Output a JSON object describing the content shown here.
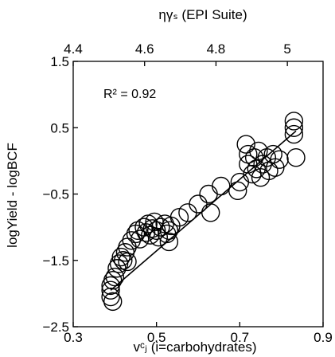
{
  "chart_data": {
    "type": "scatter",
    "title": "",
    "xlabel": "vᶜⱼ (i=carbohydrates)",
    "ylabel": "logYield - logBCF",
    "top_xlabel": "ηγₛ (EPI Suite)",
    "xlim": [
      0.3,
      0.9
    ],
    "ylim": [
      -2.5,
      1.5
    ],
    "top_xlim": [
      4.4,
      5.1
    ],
    "xticks": [
      "0.3",
      "0.5",
      "0.7",
      "0.9"
    ],
    "yticks": [
      "1.5",
      "0.5",
      "−0.5",
      "−1.5",
      "−2.5"
    ],
    "top_xticks": [
      "4.4",
      "4.6",
      "4.8",
      "5"
    ],
    "annotation": "R² = 0.92",
    "grid": false,
    "legend": "none",
    "marker": "open-circle",
    "color": "#000000",
    "fit_line": {
      "x": [
        0.39,
        0.835
      ],
      "y": [
        -1.95,
        0.45
      ]
    },
    "points": [
      {
        "x": 0.39,
        "y": -2.05
      },
      {
        "x": 0.39,
        "y": -1.95
      },
      {
        "x": 0.39,
        "y": -1.88
      },
      {
        "x": 0.395,
        "y": -1.8
      },
      {
        "x": 0.395,
        "y": -2.12
      },
      {
        "x": 0.4,
        "y": -1.75
      },
      {
        "x": 0.405,
        "y": -1.62
      },
      {
        "x": 0.41,
        "y": -1.55
      },
      {
        "x": 0.415,
        "y": -1.45
      },
      {
        "x": 0.42,
        "y": -1.5
      },
      {
        "x": 0.425,
        "y": -1.38
      },
      {
        "x": 0.43,
        "y": -1.3
      },
      {
        "x": 0.43,
        "y": -1.52
      },
      {
        "x": 0.44,
        "y": -1.2
      },
      {
        "x": 0.45,
        "y": -1.1
      },
      {
        "x": 0.455,
        "y": -1.05
      },
      {
        "x": 0.46,
        "y": -1.18
      },
      {
        "x": 0.47,
        "y": -1.0
      },
      {
        "x": 0.475,
        "y": -1.08
      },
      {
        "x": 0.48,
        "y": -0.95
      },
      {
        "x": 0.485,
        "y": -1.12
      },
      {
        "x": 0.49,
        "y": -1.02
      },
      {
        "x": 0.495,
        "y": -0.92
      },
      {
        "x": 0.5,
        "y": -1.05
      },
      {
        "x": 0.505,
        "y": -1.15
      },
      {
        "x": 0.51,
        "y": -1.0
      },
      {
        "x": 0.52,
        "y": -0.95
      },
      {
        "x": 0.525,
        "y": -1.1
      },
      {
        "x": 0.53,
        "y": -1.05
      },
      {
        "x": 0.53,
        "y": -1.22
      },
      {
        "x": 0.535,
        "y": -0.98
      },
      {
        "x": 0.555,
        "y": -0.85
      },
      {
        "x": 0.575,
        "y": -0.78
      },
      {
        "x": 0.6,
        "y": -0.65
      },
      {
        "x": 0.625,
        "y": -0.5
      },
      {
        "x": 0.63,
        "y": -0.78
      },
      {
        "x": 0.655,
        "y": -0.38
      },
      {
        "x": 0.695,
        "y": -0.45
      },
      {
        "x": 0.7,
        "y": -0.32
      },
      {
        "x": 0.715,
        "y": 0.25
      },
      {
        "x": 0.72,
        "y": 0.1
      },
      {
        "x": 0.72,
        "y": -0.05
      },
      {
        "x": 0.73,
        "y": -0.2
      },
      {
        "x": 0.735,
        "y": 0.05
      },
      {
        "x": 0.74,
        "y": -0.12
      },
      {
        "x": 0.745,
        "y": 0.15
      },
      {
        "x": 0.75,
        "y": -0.25
      },
      {
        "x": 0.755,
        "y": -0.05
      },
      {
        "x": 0.765,
        "y": 0.05
      },
      {
        "x": 0.77,
        "y": -0.15
      },
      {
        "x": 0.78,
        "y": 0.1
      },
      {
        "x": 0.785,
        "y": -0.1
      },
      {
        "x": 0.795,
        "y": 0.02
      },
      {
        "x": 0.83,
        "y": 0.6
      },
      {
        "x": 0.83,
        "y": 0.5
      },
      {
        "x": 0.83,
        "y": 0.4
      },
      {
        "x": 0.835,
        "y": 0.05
      }
    ]
  }
}
